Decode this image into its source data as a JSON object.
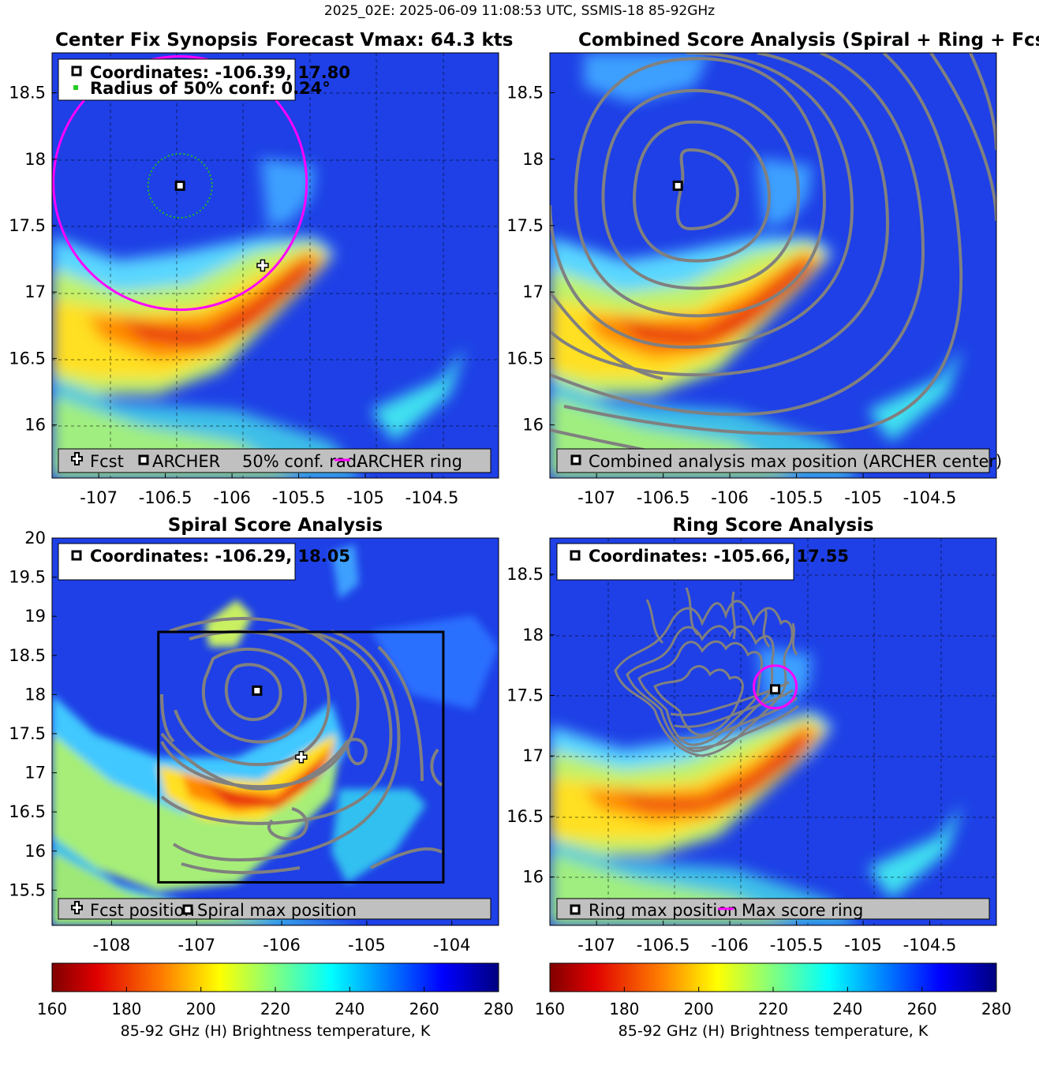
{
  "figure": {
    "suptitle": "2025_02E: 2025-06-09 11:08:53 UTC, SSMIS-18 85-92GHz"
  },
  "chart_data": [
    {
      "type": "heatmap",
      "panel": "Center Fix Synopsis",
      "title": "Center Fix Synopsis",
      "title2": "Forecast Vmax: 64.3 kts",
      "xlim": [
        -107.35,
        -104.0
      ],
      "ylim": [
        15.6,
        18.8
      ],
      "xticks": [
        -107,
        -106.5,
        -106,
        -105.5,
        -105,
        -104.5
      ],
      "xticklabels": [
        "-107",
        "-106.5",
        "-106",
        "-105.5",
        "-105",
        "-104.5"
      ],
      "yticks": [
        16,
        16.5,
        17,
        17.5,
        18,
        18.5
      ],
      "yticklabels": [
        "16",
        "16.5",
        "17",
        "17.5",
        "18",
        "18.5"
      ],
      "grid": true,
      "info_lines": [
        "Coordinates: -106.39, 17.80",
        "Radius of 50% conf: 0.24°"
      ],
      "archer_center": [
        -106.39,
        17.8
      ],
      "forecast_position": [
        -105.77,
        17.2
      ],
      "conf_radius_deg": 0.24,
      "archer_ring": {
        "center": [
          -106.39,
          17.82
        ],
        "radius_deg": 0.95
      },
      "legend": [
        "Fcst",
        "ARCHER",
        "50% conf. rad.",
        "ARCHER ring"
      ],
      "legend_position": "bottom"
    },
    {
      "type": "heatmap",
      "panel": "Combined Score Analysis",
      "title": "Combined Score Analysis (Spiral + Ring + Fcst_Pe",
      "xlim": [
        -107.35,
        -104.0
      ],
      "ylim": [
        15.6,
        18.8
      ],
      "xticks": [
        -107,
        -106.5,
        -106,
        -105.5,
        -105,
        -104.5
      ],
      "xticklabels": [
        "-107",
        "-106.5",
        "-106",
        "-105.5",
        "-105",
        "-104.5"
      ],
      "yticks": [
        16,
        16.5,
        17,
        17.5,
        18,
        18.5
      ],
      "yticklabels": [
        "16",
        "16.5",
        "17",
        "17.5",
        "18",
        "18.5"
      ],
      "grid": false,
      "max_position": [
        -106.39,
        17.8
      ],
      "legend": [
        "Combined analysis max position (ARCHER center)"
      ],
      "legend_position": "bottom"
    },
    {
      "type": "heatmap",
      "panel": "Spiral Score Analysis",
      "title": "Spiral Score Analysis",
      "xlim": [
        -108.7,
        -103.45
      ],
      "ylim": [
        15.05,
        20.0
      ],
      "xticks": [
        -108,
        -107,
        -106,
        -105,
        -104
      ],
      "xticklabels": [
        "-108",
        "-107",
        "-106",
        "-105",
        "-104"
      ],
      "yticks": [
        15.5,
        16,
        16.5,
        17,
        17.5,
        18,
        18.5,
        19,
        19.5,
        20
      ],
      "yticklabels": [
        "15.5",
        "16",
        "16.5",
        "17",
        "17.5",
        "18",
        "18.5",
        "19",
        "19.5",
        "20"
      ],
      "grid": false,
      "info_lines": [
        "Coordinates: -106.29, 18.05"
      ],
      "spiral_max_position": [
        -106.29,
        18.05
      ],
      "forecast_position": [
        -105.77,
        17.2
      ],
      "analysis_box": {
        "x": [
          -107.45,
          -104.1
        ],
        "y": [
          15.6,
          18.8
        ]
      },
      "legend": [
        "Fcst position",
        "Spiral max position"
      ],
      "legend_position": "bottom"
    },
    {
      "type": "heatmap",
      "panel": "Ring Score Analysis",
      "title": "Ring Score Analysis",
      "xlim": [
        -107.35,
        -104.0
      ],
      "ylim": [
        15.6,
        18.8
      ],
      "xticks": [
        -107,
        -106.5,
        -106,
        -105.5,
        -105,
        -104.5
      ],
      "xticklabels": [
        "-107",
        "-106.5",
        "-106",
        "-105.5",
        "-105",
        "-104.5"
      ],
      "yticks": [
        16,
        16.5,
        17,
        17.5,
        18,
        18.5
      ],
      "yticklabels": [
        "16",
        "16.5",
        "17",
        "17.5",
        "18",
        "18.5"
      ],
      "grid": true,
      "info_lines": [
        "Coordinates: -105.66, 17.55"
      ],
      "ring_max_position": [
        -105.66,
        17.55
      ],
      "max_score_ring": {
        "center": [
          -105.66,
          17.57
        ],
        "radius_deg": 0.16
      },
      "legend": [
        "Ring max position",
        "Max score ring"
      ],
      "legend_position": "bottom"
    }
  ],
  "colorbar": {
    "ticks": [
      160,
      180,
      200,
      220,
      240,
      260,
      280
    ],
    "ticklabels": [
      "160",
      "180",
      "200",
      "220",
      "240",
      "260",
      "280"
    ],
    "label": "85-92 GHz (H) Brightness temperature, K",
    "colors": [
      "#7a0000",
      "#e00000",
      "#ff7f00",
      "#ffff00",
      "#80ff80",
      "#00ffff",
      "#0080ff",
      "#0000e0",
      "#000080"
    ]
  },
  "colors": {
    "ring": "#ff00ff",
    "conf": "#22bb22",
    "contour": "#808080",
    "legend_bg": "#c0c0c0"
  }
}
